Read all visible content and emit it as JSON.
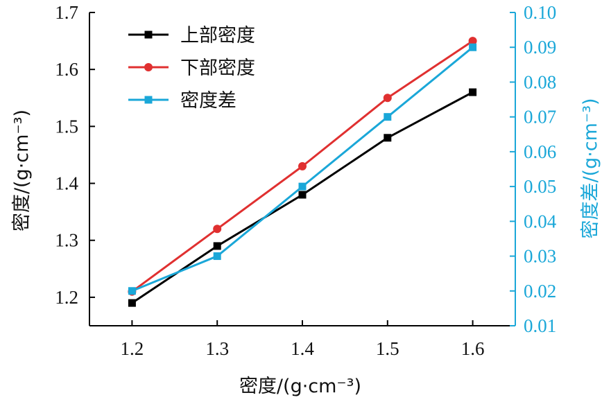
{
  "chart_data": {
    "type": "line",
    "x": [
      1.2,
      1.3,
      1.4,
      1.5,
      1.6
    ],
    "x_tick_labels": [
      "1.2",
      "1.3",
      "1.4",
      "1.5",
      "1.6"
    ],
    "xlabel": "密度/(g·cm⁻³)",
    "ylabel_left": "密度/(g·cm⁻³)",
    "ylabel_right": "密度差/(g·cm⁻³)",
    "xlim": [
      1.15,
      1.65
    ],
    "ylim_left": [
      1.15,
      1.7
    ],
    "ylim_right": [
      0.01,
      0.1
    ],
    "y_ticks_left": [
      "1.2",
      "1.3",
      "1.4",
      "1.5",
      "1.6",
      "1.7"
    ],
    "y_ticks_right": [
      "0.01",
      "0.02",
      "0.03",
      "0.04",
      "0.05",
      "0.06",
      "0.07",
      "0.08",
      "0.09",
      "0.10"
    ],
    "grid": false,
    "legend_position": "top-left",
    "colors": {
      "axis_left": "#000000",
      "axis_right": "#1aa7d8"
    },
    "series": [
      {
        "name": "上部密度",
        "axis": "left",
        "marker": "square",
        "color": "#000000",
        "values": [
          1.19,
          1.29,
          1.38,
          1.48,
          1.56
        ]
      },
      {
        "name": "下部密度",
        "axis": "left",
        "marker": "circle",
        "color": "#e03030",
        "values": [
          1.21,
          1.32,
          1.43,
          1.55,
          1.65
        ]
      },
      {
        "name": "密度差",
        "axis": "right",
        "marker": "square",
        "color": "#1aa7d8",
        "values": [
          0.02,
          0.03,
          0.05,
          0.07,
          0.09
        ]
      }
    ]
  }
}
